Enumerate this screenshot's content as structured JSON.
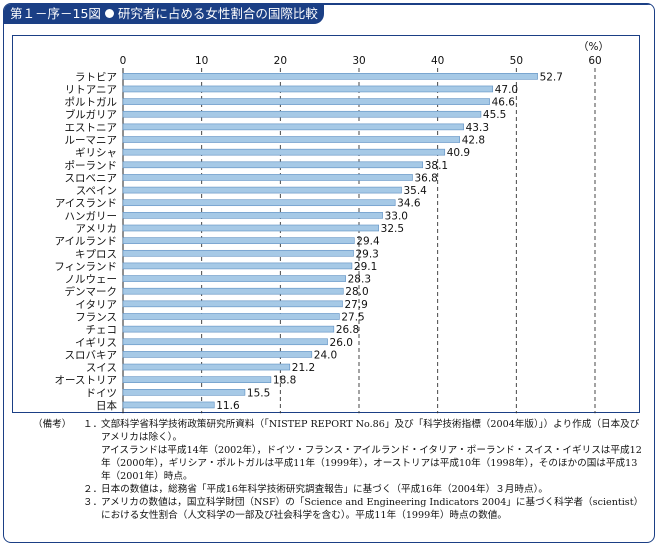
{
  "title": {
    "fig_number": "第１－序－15図",
    "text": "研究者に占める女性割合の国際比較"
  },
  "chart_data": {
    "type": "bar",
    "orientation": "horizontal",
    "unit": "（%）",
    "xlim": [
      0,
      60
    ],
    "xticks": [
      0,
      10,
      20,
      30,
      40,
      50,
      60
    ],
    "grid": "dashed vertical at each tick",
    "categories": [
      "ラトビア",
      "リトアニア",
      "ポルトガル",
      "ブルガリア",
      "エストニア",
      "ルーマニア",
      "ギリシャ",
      "ポーランド",
      "スロベニア",
      "スペイン",
      "アイスランド",
      "ハンガリー",
      "アメリカ",
      "アイルランド",
      "キプロス",
      "フィンランド",
      "ノルウェー",
      "デンマーク",
      "イタリア",
      "フランス",
      "チェコ",
      "イギリス",
      "スロバキア",
      "スイス",
      "オーストリア",
      "ドイツ",
      "日本"
    ],
    "values": [
      52.7,
      47.0,
      46.6,
      45.5,
      43.3,
      42.8,
      40.9,
      38.1,
      36.8,
      35.4,
      34.6,
      33.0,
      32.5,
      29.4,
      29.3,
      29.1,
      28.3,
      28.0,
      27.9,
      27.5,
      26.8,
      26.0,
      24.0,
      21.2,
      18.8,
      15.5,
      11.6
    ],
    "value_labels": [
      "52.7",
      "47.0",
      "46.6",
      "45.5",
      "43.3",
      "42.8",
      "40.9",
      "38.1",
      "36.8",
      "35.4",
      "34.6",
      "33.0",
      "32.5",
      "29.4",
      "29.3",
      "29.1",
      "28.3",
      "28.0",
      "27.9",
      "27.5",
      "26.8",
      "26.0",
      "24.0",
      "21.2",
      "18.8",
      "15.5",
      "11.6"
    ],
    "bar_color": "#a6c9e6",
    "bar_edge_color": "#5d8fc2"
  },
  "notes": {
    "label": "（備考）",
    "items": [
      {
        "num": "１．",
        "lines": [
          "文部科学省科学技術政策研究所資料（「NISTEP REPORT No.86」及び「科学技術指標（2004年版）」）より作成（日本及びアメリカは除く）。",
          "アイスランドは平成14年（2002年），ドイツ・フランス・アイルランド・イタリア・ポーランド・スイス・イギリスは平成12年（2000年），ギリシア・ポルトガルは平成11年（1999年），オーストリアは平成10年（1998年），そのほかの国は平成13年（2001年）時点。"
        ]
      },
      {
        "num": "２．",
        "lines": [
          "日本の数値は，総務省「平成16年科学技術研究調査報告」に基づく（平成16年（2004年）３月時点）。"
        ]
      },
      {
        "num": "３．",
        "lines": [
          "アメリカの数値は，国立科学財団（NSF）の「Science and Engineering Indicators 2004」に基づく科学者（scientist）における女性割合（人文科学の一部及び社会科学を含む）。平成11年（1999年）時点の数値。"
        ]
      }
    ]
  },
  "colors": {
    "frame": "#1b3f85",
    "title_bg": "#1b3f85"
  }
}
